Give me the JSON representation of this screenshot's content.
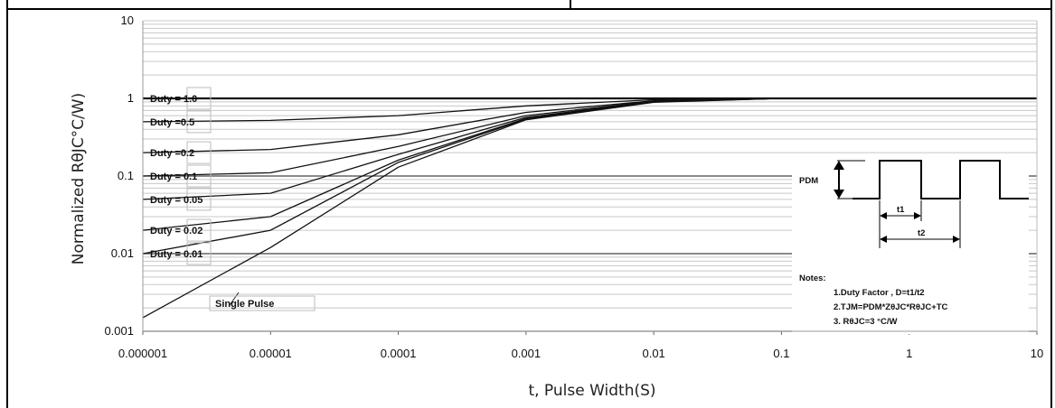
{
  "chart_data": {
    "type": "line",
    "xlabel": "t, Pulse Width(S)",
    "ylabel": "Normalized RθJC°C/W)",
    "x_scale": "log",
    "y_scale": "log",
    "xlim": [
      1e-06,
      10
    ],
    "ylim": [
      0.001,
      10
    ],
    "x_tick_labels": [
      "0.000001",
      "0.00001",
      "0.0001",
      "0.001",
      "0.01",
      "0.1",
      "1",
      "10"
    ],
    "y_tick_labels": [
      "0.001",
      "0.01",
      "0.1",
      "1",
      "10"
    ],
    "grid": true,
    "series": [
      {
        "name": "Duty = 1.0",
        "x": [
          1e-06,
          1e-05,
          0.0001,
          0.001,
          0.01,
          0.1,
          1,
          10
        ],
        "y": [
          1.0,
          1.0,
          1.0,
          1.0,
          1.0,
          1.0,
          1.0,
          1.0
        ]
      },
      {
        "name": "Duty = 0.5",
        "x": [
          1e-06,
          1e-05,
          0.0001,
          0.001,
          0.01,
          0.1,
          1,
          10
        ],
        "y": [
          0.5,
          0.52,
          0.6,
          0.8,
          0.96,
          1.0,
          1.0,
          1.0
        ]
      },
      {
        "name": "Duty = 0.2",
        "x": [
          1e-06,
          1e-05,
          0.0001,
          0.001,
          0.01,
          0.1,
          1,
          10
        ],
        "y": [
          0.2,
          0.22,
          0.34,
          0.66,
          0.93,
          1.0,
          1.0,
          1.0
        ]
      },
      {
        "name": "Duty = 0.1",
        "x": [
          1e-06,
          1e-05,
          0.0001,
          0.001,
          0.01,
          0.1,
          1,
          10
        ],
        "y": [
          0.1,
          0.11,
          0.24,
          0.6,
          0.92,
          1.0,
          1.0,
          1.0
        ]
      },
      {
        "name": "Duty = 0.05",
        "x": [
          1e-06,
          1e-05,
          0.0001,
          0.001,
          0.01,
          0.1,
          1,
          10
        ],
        "y": [
          0.05,
          0.06,
          0.19,
          0.57,
          0.91,
          1.0,
          1.0,
          1.0
        ]
      },
      {
        "name": "Duty = 0.02",
        "x": [
          1e-06,
          1e-05,
          0.0001,
          0.001,
          0.01,
          0.1,
          1,
          10
        ],
        "y": [
          0.02,
          0.03,
          0.16,
          0.55,
          0.9,
          1.0,
          1.0,
          1.0
        ]
      },
      {
        "name": "Duty = 0.01",
        "x": [
          1e-06,
          1e-05,
          0.0001,
          0.001,
          0.01,
          0.1,
          1,
          10
        ],
        "y": [
          0.01,
          0.02,
          0.15,
          0.54,
          0.9,
          1.0,
          1.0,
          1.0
        ]
      },
      {
        "name": "Single Pulse",
        "x": [
          1e-06,
          1e-05,
          0.0001,
          0.001,
          0.01,
          0.1,
          1,
          10
        ],
        "y": [
          0.0015,
          0.012,
          0.13,
          0.53,
          0.89,
          1.0,
          1.0,
          1.0
        ]
      }
    ],
    "duty_labels": [
      "Duty = 1.0",
      "Duty =0.5",
      "Duty =0.2",
      "Duty = 0.1",
      "Duty = 0.05",
      "Duty = 0.02",
      "Duty = 0.01"
    ],
    "single_pulse_label": "Single Pulse",
    "pulse_inset": {
      "pdm": "PDM",
      "t1": "t1",
      "t2": "t2"
    },
    "notes": {
      "title": "Notes:",
      "lines": [
        "1.Duty Factor , D=t1/t2",
        "2.TJM=PDM*ZθJC*RθJC+TC",
        "3. RθJC=3 °C/W"
      ]
    }
  }
}
